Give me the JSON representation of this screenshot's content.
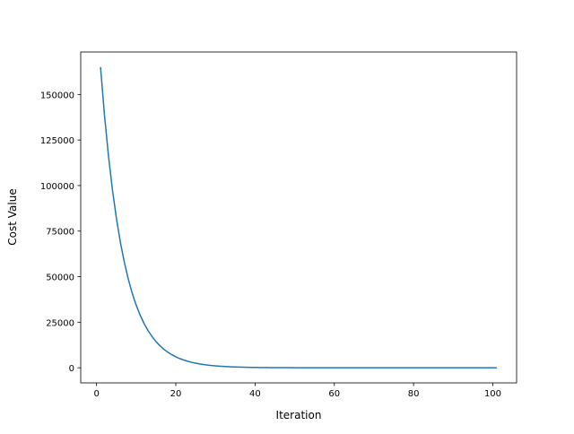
{
  "chart_data": {
    "type": "line",
    "title": "",
    "xlabel": "Iteration",
    "ylabel": "Cost Value",
    "xlim": [
      -4,
      106
    ],
    "ylim": [
      -8300,
      173300
    ],
    "xticks": [
      0,
      20,
      40,
      60,
      80,
      100
    ],
    "yticks": [
      0,
      25000,
      50000,
      75000,
      100000,
      125000,
      150000
    ],
    "grid": false,
    "legend": "none",
    "series": [
      {
        "color": "#1f77b4",
        "x_start": 1,
        "values": [
          165000,
          138600,
          116424,
          97796,
          82149,
          69005,
          57964,
          48690,
          40900,
          34356,
          28859,
          24241,
          20363,
          17105,
          14368,
          12069,
          10138,
          8516,
          7153,
          6009,
          5047,
          4240,
          3562,
          2992,
          2513,
          2111,
          1773,
          1490,
          1251,
          1051,
          883,
          742,
          623,
          523,
          440,
          369,
          310,
          261,
          219,
          184,
          154,
          130,
          109,
          92,
          77,
          65,
          54,
          46,
          38,
          32,
          27,
          23,
          19,
          16,
          13,
          11,
          9,
          8,
          7,
          6,
          5,
          4,
          3,
          3,
          2,
          2,
          2,
          1,
          1,
          1,
          1,
          1,
          1,
          1,
          1,
          1,
          1,
          1,
          1,
          1,
          0,
          0,
          0,
          0,
          0,
          0,
          0,
          0,
          0,
          0,
          0,
          0,
          0,
          0,
          0,
          0,
          0,
          0,
          0,
          0,
          0
        ]
      }
    ]
  }
}
